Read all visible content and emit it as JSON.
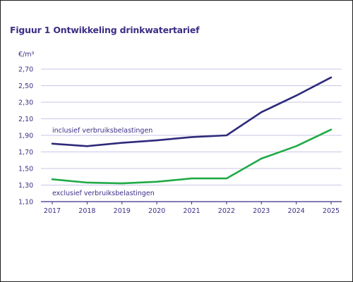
{
  "figure": {
    "title": "Figuur 1 Ontwikkeling drinkwatertarief"
  },
  "colors": {
    "title": "#3b2f86",
    "grid": "#c9c6e6",
    "axis": "#3b2f86",
    "series_incl": "#2e2a7a",
    "series_excl": "#1faa46"
  },
  "chart_data": {
    "type": "line",
    "title": "Figuur 1 Ontwikkeling drinkwatertarief",
    "ylabel": "€/m³",
    "xlabel": "",
    "ylim": [
      1.1,
      2.7
    ],
    "yticks": [
      "2,70",
      "2,50",
      "2,30",
      "2,10",
      "1,90",
      "1,70",
      "1,50",
      "1,30",
      "1,10"
    ],
    "ytick_values": [
      2.7,
      2.5,
      2.3,
      2.1,
      1.9,
      1.7,
      1.5,
      1.3,
      1.1
    ],
    "categories": [
      "2017",
      "2018",
      "2019",
      "2020",
      "2021",
      "2022",
      "2023",
      "2024",
      "2025"
    ],
    "grid": true,
    "series": [
      {
        "name": "inclusief verbruiksbelastingen",
        "color": "#2e2a7a",
        "values": [
          1.8,
          1.77,
          1.81,
          1.84,
          1.88,
          1.9,
          2.18,
          2.38,
          2.6
        ]
      },
      {
        "name": "exclusief verbruiksbelastingen",
        "color": "#1faa46",
        "values": [
          1.37,
          1.33,
          1.32,
          1.34,
          1.38,
          1.38,
          1.62,
          1.77,
          1.97
        ]
      }
    ]
  }
}
